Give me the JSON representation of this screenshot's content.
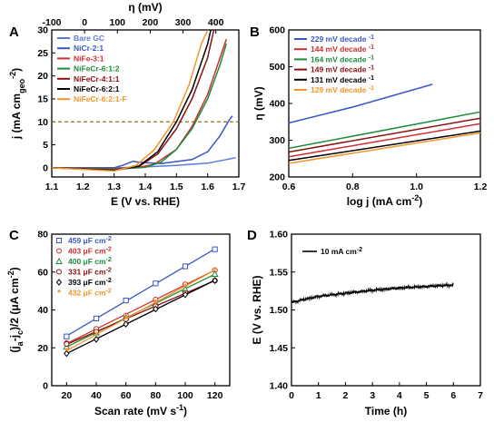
{
  "chart_data": [
    {
      "panel": "A",
      "type": "line",
      "xlabel": "E (V vs. RHE)",
      "ylabel": "j (mA cm_geo^-2)",
      "top_xlabel": "η (mV)",
      "xlim": [
        1.1,
        1.7
      ],
      "ylim": [
        -2,
        30
      ],
      "top_xlim": [
        -100,
        470
      ],
      "xticks": [
        "1.1",
        "1.2",
        "1.3",
        "1.4",
        "1.5",
        "1.6",
        "1.7"
      ],
      "yticks": [
        "0",
        "5",
        "10",
        "15",
        "20",
        "25",
        "30"
      ],
      "top_xticks": [
        "-100",
        "0",
        "100",
        "200",
        "300",
        "400"
      ],
      "reference_line": {
        "y": 10,
        "color": "#8a7a10",
        "style": "dashed"
      },
      "series": [
        {
          "name": "Bare GC",
          "color": "#5b7bd5",
          "points": [
            [
              1.1,
              0
            ],
            [
              1.3,
              0
            ],
            [
              1.4,
              0.2
            ],
            [
              1.5,
              0.5
            ],
            [
              1.6,
              1.0
            ],
            [
              1.66,
              1.8
            ],
            [
              1.69,
              2.2
            ]
          ]
        },
        {
          "name": "NiCr-2:1",
          "color": "#3a57c4",
          "points": [
            [
              1.1,
              0
            ],
            [
              1.3,
              0
            ],
            [
              1.33,
              0.6
            ],
            [
              1.36,
              1.4
            ],
            [
              1.38,
              1.2
            ],
            [
              1.45,
              0.9
            ],
            [
              1.55,
              1.8
            ],
            [
              1.6,
              3.5
            ],
            [
              1.64,
              7
            ],
            [
              1.67,
              10.5
            ],
            [
              1.68,
              11.3
            ]
          ]
        },
        {
          "name": "NiFe-3:1",
          "color": "#d12d2d",
          "points": [
            [
              1.1,
              0
            ],
            [
              1.3,
              -0.2
            ],
            [
              1.38,
              0.1
            ],
            [
              1.43,
              0.8
            ],
            [
              1.5,
              4
            ],
            [
              1.55,
              9
            ],
            [
              1.6,
              16
            ],
            [
              1.64,
              24
            ],
            [
              1.66,
              28
            ]
          ]
        },
        {
          "name": "NiFeCr-6:1:2",
          "color": "#1e8c3a",
          "points": [
            [
              1.1,
              0
            ],
            [
              1.3,
              -0.3
            ],
            [
              1.4,
              0.1
            ],
            [
              1.45,
              1.2
            ],
            [
              1.5,
              4
            ],
            [
              1.55,
              8.5
            ],
            [
              1.6,
              15
            ],
            [
              1.64,
              22.5
            ],
            [
              1.66,
              27
            ]
          ]
        },
        {
          "name": "NiFeCr-4:1:1",
          "color": "#8b1010",
          "points": [
            [
              1.1,
              0
            ],
            [
              1.3,
              -0.5
            ],
            [
              1.38,
              0.3
            ],
            [
              1.44,
              3
            ],
            [
              1.5,
              8.5
            ],
            [
              1.55,
              15
            ],
            [
              1.6,
              24
            ],
            [
              1.62,
              30
            ]
          ]
        },
        {
          "name": "NiFeCr-6:2:1",
          "color": "#000000",
          "points": [
            [
              1.1,
              0
            ],
            [
              1.3,
              -0.6
            ],
            [
              1.38,
              0.4
            ],
            [
              1.44,
              3.5
            ],
            [
              1.5,
              10
            ],
            [
              1.55,
              17
            ],
            [
              1.6,
              27
            ],
            [
              1.61,
              30
            ]
          ]
        },
        {
          "name": "NiFeCr-6:2:1-F",
          "color": "#f2952b",
          "points": [
            [
              1.1,
              0
            ],
            [
              1.3,
              -0.7
            ],
            [
              1.37,
              0.5
            ],
            [
              1.43,
              4
            ],
            [
              1.49,
              10
            ],
            [
              1.54,
              18
            ],
            [
              1.58,
              27
            ],
            [
              1.6,
              30
            ]
          ]
        }
      ]
    },
    {
      "panel": "B",
      "type": "line",
      "xlabel": "log j (mA cm^-2)",
      "ylabel": "η (mV)",
      "xlim": [
        0.6,
        1.2
      ],
      "ylim": [
        200,
        600
      ],
      "xticks": [
        "0.6",
        "0.8",
        "1.0",
        "1.2"
      ],
      "yticks": [
        "200",
        "300",
        "400",
        "500",
        "600"
      ],
      "series": [
        {
          "name": "229 mV decade^-1",
          "color": "#3a57c4",
          "points": [
            [
              0.6,
              347
            ],
            [
              0.8,
              390
            ],
            [
              1.05,
              452
            ]
          ]
        },
        {
          "name": "144 mV decade^-1",
          "color": "#d12d2d",
          "points": [
            [
              0.6,
              255
            ],
            [
              1.2,
              345
            ]
          ]
        },
        {
          "name": "164 mV decade^-1",
          "color": "#1e8c3a",
          "points": [
            [
              0.6,
              278
            ],
            [
              1.2,
              377
            ]
          ]
        },
        {
          "name": "149 mV decade^-1",
          "color": "#8b1010",
          "points": [
            [
              0.6,
              268
            ],
            [
              1.2,
              360
            ]
          ]
        },
        {
          "name": "131 mV decade^-1",
          "color": "#000000",
          "points": [
            [
              0.6,
              245
            ],
            [
              1.2,
              325
            ]
          ]
        },
        {
          "name": "129 mV decade^-1",
          "color": "#f2952b",
          "points": [
            [
              0.6,
              237
            ],
            [
              1.2,
              320
            ]
          ]
        }
      ]
    },
    {
      "panel": "C",
      "type": "scatter",
      "xlabel": "Scan rate (mV s^-1)",
      "ylabel": "(j_a-j_c)/2 (μA cm^-2)",
      "xlim": [
        10,
        130
      ],
      "ylim": [
        0,
        80
      ],
      "xticks": [
        "20",
        "40",
        "60",
        "80",
        "100",
        "120"
      ],
      "yticks": [
        "0",
        "20",
        "40",
        "60",
        "80"
      ],
      "x": [
        20,
        40,
        60,
        80,
        100,
        120
      ],
      "series": [
        {
          "name": "459 μF cm^-2",
          "color": "#3a57c4",
          "marker": "square",
          "values": [
            26,
            35.5,
            45,
            54,
            63,
            72
          ]
        },
        {
          "name": "403 μF cm^-2",
          "color": "#d12d2d",
          "marker": "circle",
          "values": [
            22.5,
            30,
            37,
            45.5,
            53.5,
            61
          ]
        },
        {
          "name": "400 μF cm^-2",
          "color": "#1e8c3a",
          "marker": "triangle",
          "values": [
            20.5,
            28,
            36,
            43.5,
            51,
            59
          ]
        },
        {
          "name": "331 μF cm^-2",
          "color": "#8b1010",
          "marker": "circle",
          "values": [
            22,
            28.5,
            35,
            42,
            49,
            55.5
          ]
        },
        {
          "name": "393 μF cm^-2",
          "color": "#000000",
          "marker": "diamond",
          "values": [
            17,
            24.5,
            32.5,
            40.5,
            48,
            55.5
          ]
        },
        {
          "name": "432 μF cm^-2",
          "color": "#f2952b",
          "marker": "star",
          "values": [
            18.5,
            27,
            35.5,
            44,
            52.5,
            61
          ]
        }
      ]
    },
    {
      "panel": "D",
      "type": "line",
      "xlabel": "Time (h)",
      "ylabel": "E (V vs. RHE)",
      "xlim": [
        0,
        7
      ],
      "ylim": [
        1.4,
        1.6
      ],
      "xticks": [
        "0",
        "1",
        "2",
        "3",
        "4",
        "5",
        "6",
        "7"
      ],
      "yticks": [
        "1.40",
        "1.45",
        "1.50",
        "1.55",
        "1.60"
      ],
      "series": [
        {
          "name": "10 mA cm^-2",
          "color": "#000000",
          "points": [
            [
              0,
              1.51
            ],
            [
              0.5,
              1.514
            ],
            [
              1,
              1.518
            ],
            [
              2,
              1.522
            ],
            [
              3,
              1.526
            ],
            [
              4,
              1.529
            ],
            [
              5,
              1.531
            ],
            [
              6,
              1.533
            ]
          ]
        }
      ]
    }
  ],
  "panels": {
    "A": {
      "label": "A",
      "xlabel": "E (V vs. RHE)",
      "ylabel_main": "j (mA cm",
      "ylabel_sub": "geo",
      "ylabel_sup": "-2",
      "ylabel_end": ")",
      "top_xlabel": "η (mV)"
    },
    "B": {
      "label": "B",
      "xlabel_main": "log j (mA cm",
      "xlabel_sup": "-2",
      "xlabel_end": ")",
      "ylabel": "η (mV)"
    },
    "C": {
      "label": "C",
      "xlabel_main": "Scan rate (mV s",
      "xlabel_sup": "-1",
      "xlabel_end": ")",
      "ylabel_main": "(j",
      "ylabel_a": "a",
      "ylabel_mid": "-j",
      "ylabel_c": "c",
      "ylabel_rest": ")/2 (μA cm",
      "ylabel_sup": "-2",
      "ylabel_end": ")"
    },
    "D": {
      "label": "D",
      "xlabel": "Time (h)",
      "ylabel": "E (V vs. RHE)"
    }
  },
  "legends": {
    "A": [
      "Bare GC",
      "NiCr-2:1",
      "NiFe-3:1",
      "NiFeCr-6:1:2",
      "NiFeCr-4:1:1",
      "NiFeCr-6:2:1",
      "NiFeCr-6:2:1-F"
    ],
    "B": [
      "229 mV decade",
      "144 mV decade",
      "164 mV decade",
      "149 mV decade",
      "131 mV decade",
      "129 mV decade"
    ],
    "B_sup": "-1",
    "C": [
      "459 μF cm",
      "403 μF cm",
      "400 μF cm",
      "331 μF cm",
      "393 μF cm",
      "432 μF cm"
    ],
    "C_sup": "-2",
    "D": [
      "10 mA cm"
    ],
    "D_sup": "-2"
  }
}
